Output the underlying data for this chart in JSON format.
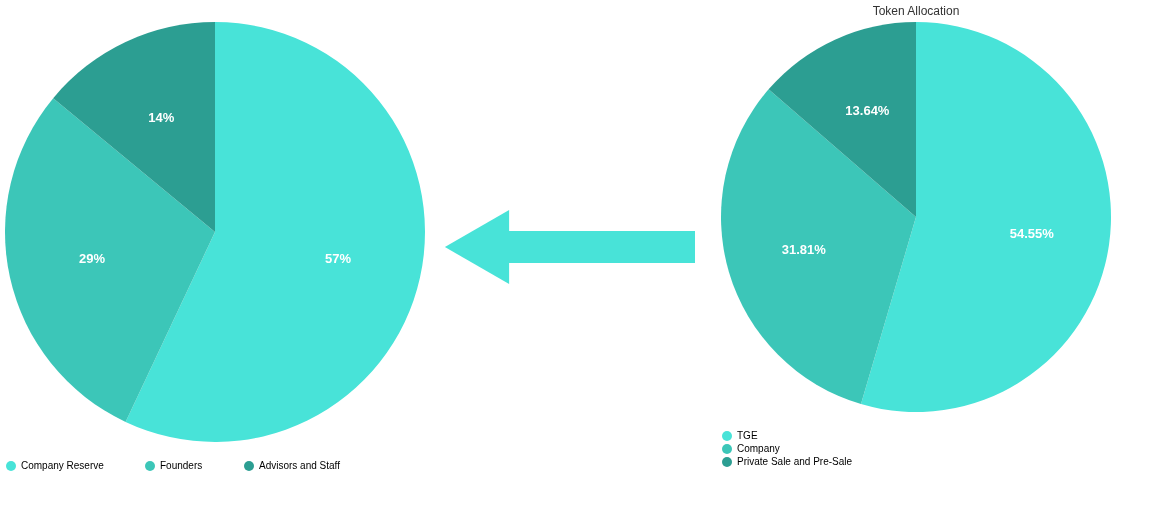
{
  "chart_data": [
    {
      "type": "pie",
      "categories": [
        "Company Reserve",
        "Founders",
        "Advisors and Staff"
      ],
      "values": [
        57,
        29,
        14
      ],
      "colors": [
        "#48e3d8",
        "#3cc6b8",
        "#2c9e92"
      ],
      "value_labels": [
        "57%",
        "29%",
        "14%"
      ],
      "legend": "bottom"
    },
    {
      "type": "pie",
      "title": "Token Allocation",
      "categories": [
        "TGE",
        "Company",
        "Private Sale and Pre-Sale"
      ],
      "values": [
        54.55,
        31.81,
        13.64
      ],
      "colors": [
        "#48e3d8",
        "#3cc6b8",
        "#2c9e92"
      ],
      "value_labels": [
        "54.55%",
        "31.81%",
        "13.64%"
      ],
      "legend": "bottom"
    }
  ]
}
